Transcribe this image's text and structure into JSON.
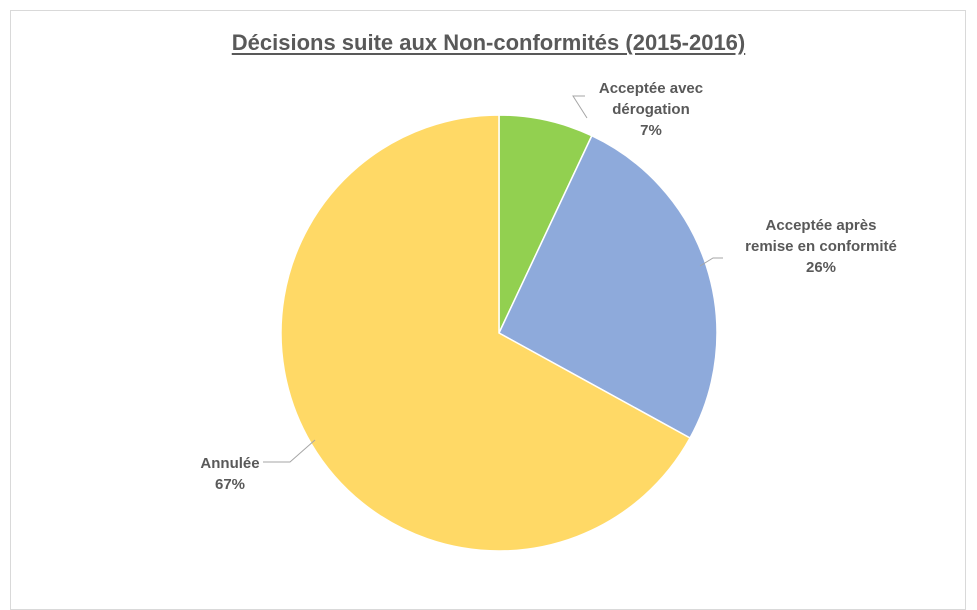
{
  "chart_data": {
    "type": "pie",
    "title": "Décisions suite aux Non-conformités (2015-2016)",
    "slices": [
      {
        "label_lines": [
          "Acceptée avec",
          "dérogation"
        ],
        "value_label": "7%",
        "value": 7,
        "color": "#92d050"
      },
      {
        "label_lines": [
          "Acceptée après",
          "remise en conformité"
        ],
        "value_label": "26%",
        "value": 26,
        "color": "#8eaadb"
      },
      {
        "label_lines": [
          "Annulée"
        ],
        "value_label": "67%",
        "value": 67,
        "color": "#ffd966"
      }
    ],
    "start_angle": "12 o'clock",
    "direction": "clockwise",
    "legend": "none"
  }
}
